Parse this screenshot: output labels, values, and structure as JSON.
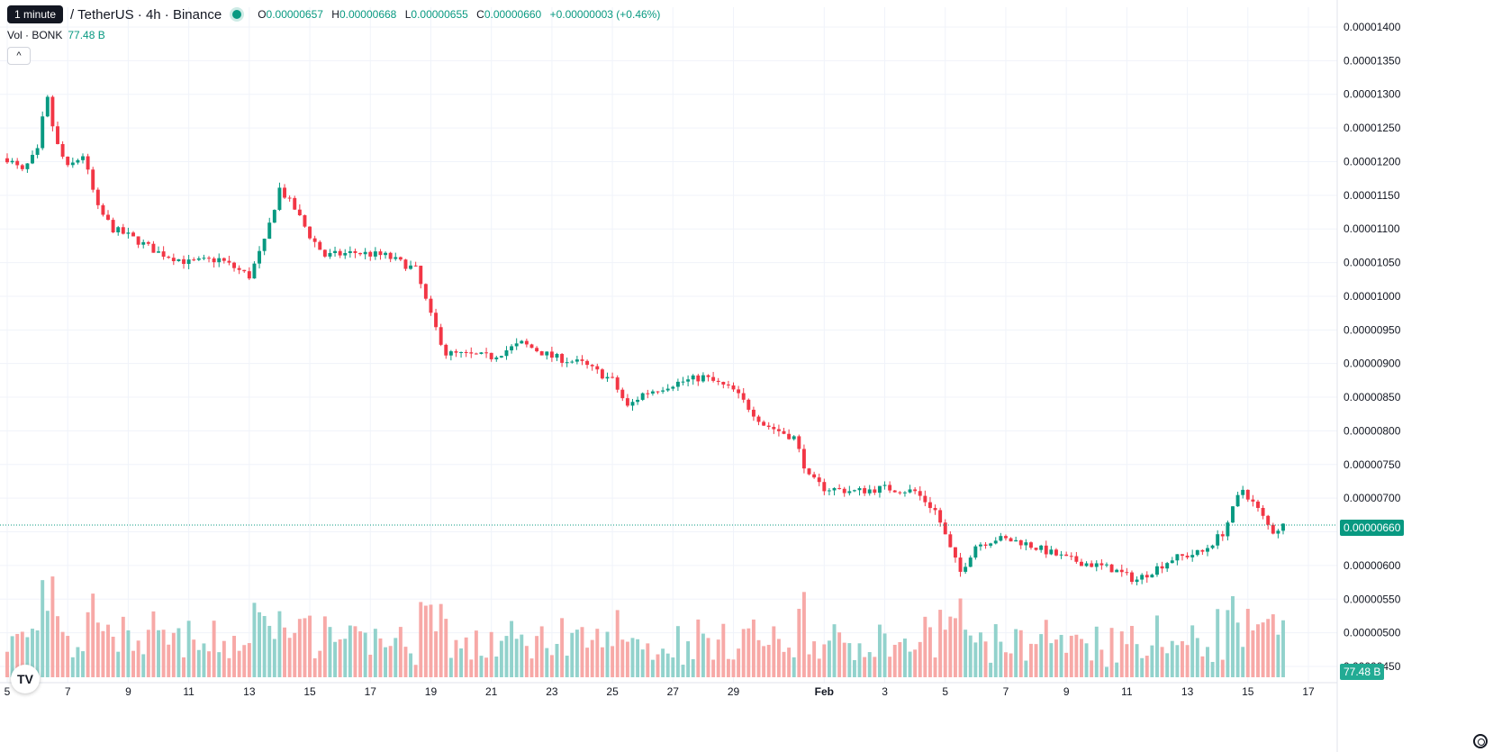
{
  "legend": {
    "tooltip": "1 minute",
    "symbol": "/ TetherUS · 4h · Binance",
    "open_label": "O",
    "open": "0.00000657",
    "high_label": "H",
    "high": "0.00000668",
    "low_label": "L",
    "low": "0.00000655",
    "close_label": "C",
    "close": "0.00000660",
    "change": "+0.00000003 (+0.46%)"
  },
  "volume_legend": {
    "label": "Vol · BONK",
    "value": "77.48 B"
  },
  "collapse_icon": "chevron-up-icon",
  "last_price_label": "0.00000660",
  "last_volume_label": "77.48 B",
  "logo": "TV",
  "colors": {
    "up": "#089981",
    "down": "#f23645",
    "up_vol": "#92d2cc",
    "down_vol": "#f7a9a7",
    "grid": "#f0f3fa"
  },
  "chart_data": {
    "type": "candlestick",
    "y_ticks": [
      "0.00001400",
      "0.00001350",
      "0.00001300",
      "0.00001250",
      "0.00001200",
      "0.00001150",
      "0.00001100",
      "0.00001050",
      "0.00001000",
      "0.00000950",
      "0.00000900",
      "0.00000850",
      "0.00000800",
      "0.00000750",
      "0.00000700",
      "0.00000650",
      "0.00000600",
      "0.00000550",
      "0.00000500",
      "0.00000450"
    ],
    "ylim": [
      4.5e-06,
      1.4e-05
    ],
    "x_ticks": [
      {
        "label": "5",
        "day": 5
      },
      {
        "label": "7",
        "day": 7
      },
      {
        "label": "9",
        "day": 9
      },
      {
        "label": "11",
        "day": 11
      },
      {
        "label": "13",
        "day": 13
      },
      {
        "label": "15",
        "day": 15
      },
      {
        "label": "17",
        "day": 17
      },
      {
        "label": "19",
        "day": 19
      },
      {
        "label": "21",
        "day": 21
      },
      {
        "label": "23",
        "day": 23
      },
      {
        "label": "25",
        "day": 25
      },
      {
        "label": "27",
        "day": 27
      },
      {
        "label": "29",
        "day": 29
      },
      {
        "label": "Feb",
        "day": 32
      },
      {
        "label": "3",
        "day": 34
      },
      {
        "label": "5",
        "day": 36
      },
      {
        "label": "7",
        "day": 38
      },
      {
        "label": "9",
        "day": 40
      },
      {
        "label": "11",
        "day": 42
      },
      {
        "label": "13",
        "day": 44
      },
      {
        "label": "15",
        "day": 46
      },
      {
        "label": "17",
        "day": 48
      }
    ],
    "close_anchors": [
      [
        5.0,
        12.05
      ],
      [
        5.5,
        11.85
      ],
      [
        6.0,
        12.15
      ],
      [
        6.3,
        13.0
      ],
      [
        6.6,
        12.3
      ],
      [
        7.0,
        11.9
      ],
      [
        7.5,
        12.1
      ],
      [
        8.0,
        11.3
      ],
      [
        8.5,
        11.0
      ],
      [
        9.0,
        10.9
      ],
      [
        10.0,
        10.65
      ],
      [
        11.0,
        10.5
      ],
      [
        12.0,
        10.55
      ],
      [
        13.0,
        10.3
      ],
      [
        13.5,
        10.8
      ],
      [
        14.0,
        11.6
      ],
      [
        14.5,
        11.3
      ],
      [
        15.0,
        10.9
      ],
      [
        15.5,
        10.6
      ],
      [
        16.5,
        10.65
      ],
      [
        17.5,
        10.6
      ],
      [
        18.5,
        10.4
      ],
      [
        19.0,
        9.7
      ],
      [
        19.5,
        9.15
      ],
      [
        21.0,
        9.1
      ],
      [
        22.0,
        9.3
      ],
      [
        23.0,
        9.1
      ],
      [
        24.0,
        9.0
      ],
      [
        25.0,
        8.75
      ],
      [
        25.5,
        8.35
      ],
      [
        26.0,
        8.55
      ],
      [
        27.0,
        8.7
      ],
      [
        28.0,
        8.8
      ],
      [
        29.0,
        8.6
      ],
      [
        30.0,
        8.1
      ],
      [
        31.0,
        7.9
      ],
      [
        31.5,
        7.3
      ],
      [
        32.0,
        7.15
      ],
      [
        33.0,
        7.1
      ],
      [
        34.0,
        7.15
      ],
      [
        35.0,
        7.1
      ],
      [
        35.7,
        6.8
      ],
      [
        36.2,
        6.2
      ],
      [
        36.5,
        5.9
      ],
      [
        37.0,
        6.3
      ],
      [
        37.7,
        6.4
      ],
      [
        38.5,
        6.35
      ],
      [
        40.0,
        6.1
      ],
      [
        41.5,
        5.95
      ],
      [
        42.3,
        5.78
      ],
      [
        43.5,
        6.1
      ],
      [
        44.5,
        6.2
      ],
      [
        45.2,
        6.5
      ],
      [
        45.8,
        7.15
      ],
      [
        46.3,
        6.85
      ],
      [
        46.8,
        6.5
      ],
      [
        47.2,
        6.6
      ]
    ],
    "start_day": 5.0,
    "end_day": 47.2,
    "note_units": "prices in units of 1e-6 USDT"
  }
}
